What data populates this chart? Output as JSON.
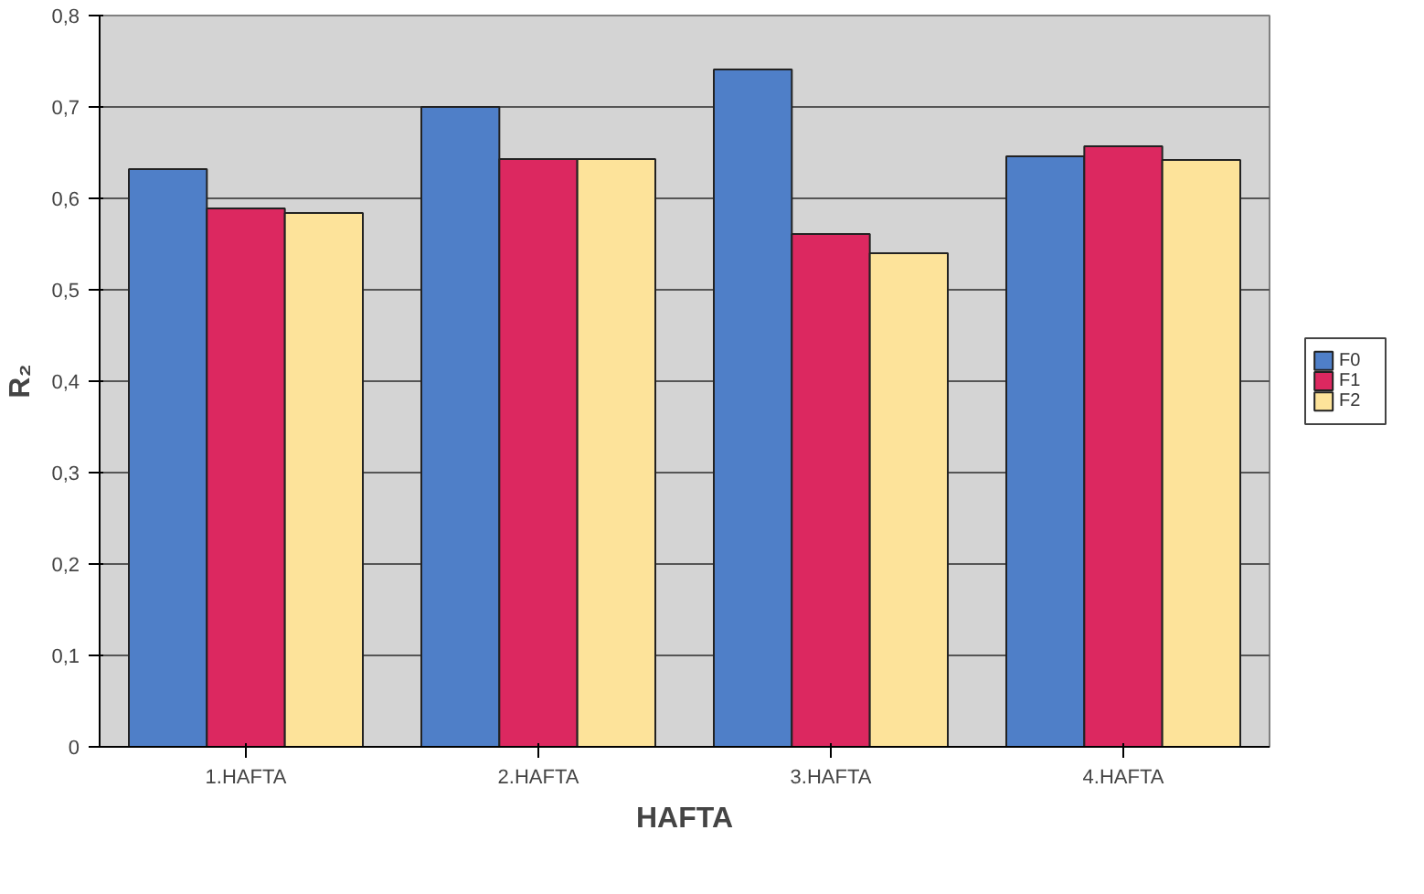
{
  "chart_data": {
    "type": "bar",
    "xlabel": "HAFTA",
    "ylabel": "R₂",
    "categories": [
      "1.HAFTA",
      "2.HAFTA",
      "3.HAFTA",
      "4.HAFTA"
    ],
    "series": [
      {
        "name": "F0",
        "color": "#4f7fc8",
        "values": [
          0.632,
          0.7,
          0.741,
          0.646
        ]
      },
      {
        "name": "F1",
        "color": "#dc2860",
        "values": [
          0.589,
          0.643,
          0.561,
          0.657
        ]
      },
      {
        "name": "F2",
        "color": "#fde39a",
        "values": [
          0.584,
          0.643,
          0.54,
          0.642
        ]
      }
    ],
    "ylim": [
      0,
      0.8
    ],
    "yticks": [
      {
        "value": 0,
        "label": "0"
      },
      {
        "value": 0.1,
        "label": "0,1"
      },
      {
        "value": 0.2,
        "label": "0,2"
      },
      {
        "value": 0.3,
        "label": "0,3"
      },
      {
        "value": 0.4,
        "label": "0,4"
      },
      {
        "value": 0.5,
        "label": "0,5"
      },
      {
        "value": 0.6,
        "label": "0,6"
      },
      {
        "value": 0.7,
        "label": "0,7"
      },
      {
        "value": 0.8,
        "label": "0,8"
      }
    ],
    "grid": "y",
    "legend": "right"
  }
}
